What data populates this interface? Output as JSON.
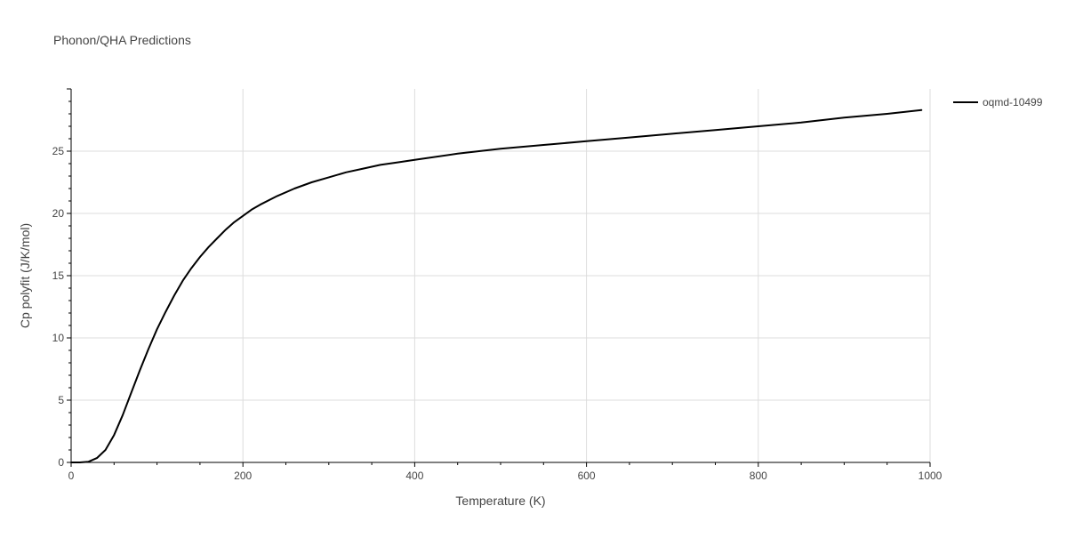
{
  "chart_data": {
    "type": "line",
    "title": "Phonon/QHA Predictions",
    "xlabel": "Temperature (K)",
    "ylabel": "Cp polyfit (J/K/mol)",
    "xlim": [
      0,
      1000
    ],
    "ylim": [
      0,
      30
    ],
    "x_ticks": [
      0,
      200,
      400,
      600,
      800,
      1000
    ],
    "y_ticks": [
      0,
      5,
      10,
      15,
      20,
      25
    ],
    "grid": true,
    "legend_position": "top-right",
    "series": [
      {
        "name": "oqmd-10499",
        "color": "#000000",
        "x": [
          0,
          10,
          20,
          30,
          40,
          50,
          60,
          70,
          80,
          90,
          100,
          110,
          120,
          130,
          140,
          150,
          160,
          170,
          180,
          190,
          200,
          210,
          220,
          240,
          260,
          280,
          300,
          320,
          340,
          360,
          380,
          400,
          450,
          500,
          550,
          600,
          650,
          700,
          750,
          800,
          850,
          900,
          950,
          990
        ],
        "y": [
          0,
          0,
          0.05,
          0.35,
          1.0,
          2.2,
          3.8,
          5.6,
          7.4,
          9.1,
          10.7,
          12.1,
          13.4,
          14.6,
          15.6,
          16.5,
          17.3,
          18.0,
          18.7,
          19.3,
          19.8,
          20.3,
          20.7,
          21.4,
          22.0,
          22.5,
          22.9,
          23.3,
          23.6,
          23.9,
          24.1,
          24.3,
          24.8,
          25.2,
          25.5,
          25.8,
          26.1,
          26.4,
          26.7,
          27.0,
          27.3,
          27.7,
          28.0,
          28.3
        ]
      }
    ]
  }
}
